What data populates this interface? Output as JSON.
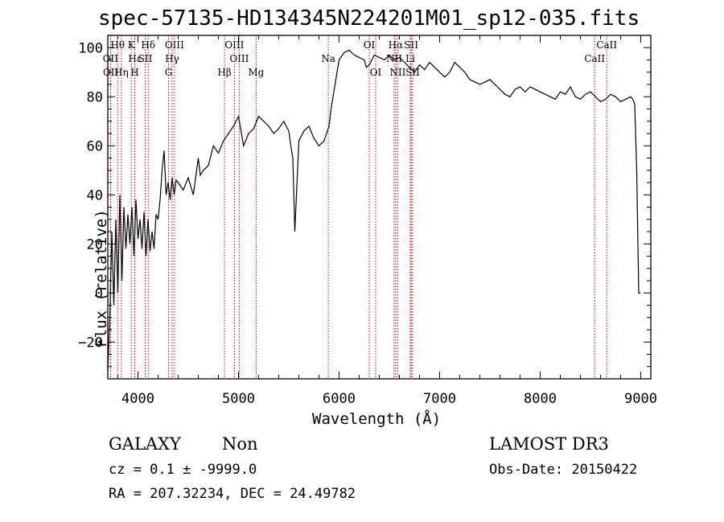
{
  "header": {
    "title": "spec-57135-HD134345N224201M01_sp12-035.fits"
  },
  "info": {
    "object_class": "GALAXY",
    "object_subclass": "Non",
    "cz_line": "cz = 0.1 ± -9999.0",
    "radec_line": "RA = 207.32234, DEC =  24.49782",
    "survey": "LAMOST DR3",
    "obs_date_line": "Obs-Date: 20150422"
  },
  "chart_data": {
    "type": "line",
    "title": "spec-57135-HD134345N224201M01_sp12-035.fits",
    "xlabel": "Wavelength (Å)",
    "ylabel": "Flux (relative)",
    "xlim": [
      3700,
      9100
    ],
    "ylim": [
      -35,
      105
    ],
    "xticks": [
      4000,
      5000,
      6000,
      7000,
      8000,
      9000
    ],
    "yticks": [
      -20,
      0,
      20,
      40,
      60,
      80,
      100
    ],
    "line_color": "#000000",
    "marker_color": "#cc0000",
    "series": [
      {
        "name": "flux",
        "x": [
          3700,
          3720,
          3740,
          3760,
          3780,
          3800,
          3820,
          3840,
          3860,
          3880,
          3900,
          3920,
          3940,
          3960,
          3980,
          4000,
          4020,
          4040,
          4060,
          4080,
          4100,
          4120,
          4140,
          4160,
          4180,
          4200,
          4220,
          4240,
          4260,
          4280,
          4300,
          4320,
          4340,
          4360,
          4380,
          4400,
          4450,
          4500,
          4550,
          4600,
          4620,
          4650,
          4700,
          4750,
          4800,
          4850,
          4900,
          4950,
          5000,
          5050,
          5100,
          5150,
          5200,
          5250,
          5300,
          5350,
          5400,
          5450,
          5500,
          5520,
          5540,
          5560,
          5600,
          5650,
          5700,
          5750,
          5800,
          5850,
          5900,
          5920,
          5940,
          5960,
          6000,
          6050,
          6100,
          6150,
          6200,
          6250,
          6270,
          6300,
          6350,
          6400,
          6450,
          6500,
          6550,
          6600,
          6650,
          6700,
          6750,
          6800,
          6850,
          6900,
          6950,
          7000,
          7050,
          7100,
          7150,
          7200,
          7250,
          7300,
          7350,
          7400,
          7450,
          7500,
          7550,
          7600,
          7650,
          7700,
          7750,
          7800,
          7850,
          7900,
          7950,
          8000,
          8050,
          8100,
          8150,
          8200,
          8250,
          8300,
          8350,
          8400,
          8450,
          8500,
          8550,
          8600,
          8650,
          8700,
          8750,
          8800,
          8850,
          8900,
          8920,
          8940,
          8960,
          8980,
          9000
        ],
        "y": [
          -32,
          -10,
          25,
          -5,
          30,
          0,
          40,
          5,
          35,
          18,
          32,
          20,
          35,
          15,
          38,
          22,
          30,
          18,
          33,
          15,
          30,
          17,
          25,
          18,
          32,
          30,
          38,
          50,
          58,
          40,
          45,
          38,
          47,
          40,
          46,
          45,
          42,
          47,
          40,
          55,
          48,
          50,
          52,
          60,
          57,
          62,
          65,
          68,
          72,
          60,
          65,
          67,
          72,
          70,
          68,
          65,
          67,
          70,
          66,
          60,
          55,
          25,
          62,
          66,
          68,
          63,
          60,
          62,
          68,
          75,
          80,
          85,
          95,
          98,
          99,
          97,
          96,
          95,
          92,
          93,
          97,
          96,
          95,
          97,
          95,
          96,
          94,
          92,
          90,
          93,
          91,
          94,
          92,
          90,
          88,
          90,
          94,
          92,
          90,
          87,
          86,
          85,
          86,
          87,
          85,
          83,
          81,
          80,
          83,
          84,
          82,
          84,
          83,
          82,
          81,
          80,
          79,
          82,
          81,
          84,
          80,
          79,
          81,
          82,
          80,
          78,
          79,
          81,
          80,
          78,
          79,
          80,
          79,
          77,
          50,
          0,
          0
        ]
      }
    ],
    "lines": [
      {
        "name": "OII",
        "wave": 3727,
        "label_row": 1
      },
      {
        "name": "OII",
        "wave": 3729,
        "label_row": 2
      },
      {
        "name": "Hθ",
        "wave": 3798,
        "label_row": 0
      },
      {
        "name": "Hε",
        "wave": 3970,
        "label_row": 1
      },
      {
        "name": "Hη",
        "wave": 3835,
        "label_row": 2
      },
      {
        "name": "K",
        "wave": 3934,
        "label_row": 0
      },
      {
        "name": "H",
        "wave": 3968,
        "label_row": 2
      },
      {
        "name": "Hδ",
        "wave": 4102,
        "label_row": 0
      },
      {
        "name": "SII",
        "wave": 4072,
        "label_row": 1
      },
      {
        "name": "OIII",
        "wave": 4363,
        "label_row": 0
      },
      {
        "name": "Hγ",
        "wave": 4340,
        "label_row": 1
      },
      {
        "name": "G",
        "wave": 4304,
        "label_row": 2
      },
      {
        "name": "OIII",
        "wave": 4959,
        "label_row": 0
      },
      {
        "name": "OIII",
        "wave": 5007,
        "label_row": 1
      },
      {
        "name": "Hβ",
        "wave": 4861,
        "label_row": 2
      },
      {
        "name": "Mg",
        "wave": 5175,
        "label_row": 2
      },
      {
        "name": "Na",
        "wave": 5893,
        "label_row": 1
      },
      {
        "name": "OI",
        "wave": 6300,
        "label_row": 0
      },
      {
        "name": "OI",
        "wave": 6364,
        "label_row": 2
      },
      {
        "name": "Hα",
        "wave": 6563,
        "label_row": 0
      },
      {
        "name": "NII",
        "wave": 6548,
        "label_row": 1
      },
      {
        "name": "NII",
        "wave": 6583,
        "label_row": 2
      },
      {
        "name": "SII",
        "wave": 6717,
        "label_row": 0
      },
      {
        "name": "Li",
        "wave": 6708,
        "label_row": 1
      },
      {
        "name": "SII",
        "wave": 6731,
        "label_row": 2
      },
      {
        "name": "CaII",
        "wave": 8662,
        "label_row": 0
      },
      {
        "name": "CaII",
        "wave": 8542,
        "label_row": 1
      }
    ]
  }
}
